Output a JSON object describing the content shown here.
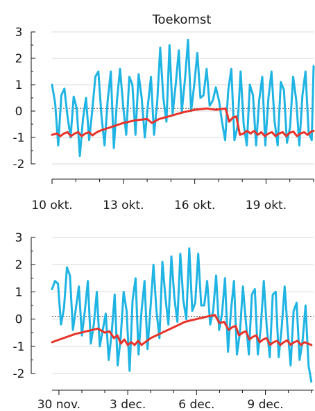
{
  "title": "Toekomst",
  "colors": {
    "blue": "#1fb4e3",
    "red": "#e8332a",
    "axis": "#222222",
    "grid": "#d9d9d9"
  },
  "chart_data": [
    {
      "type": "line",
      "title": "Toekomst",
      "xlabel": "",
      "ylabel": "",
      "xlim": [
        10.0,
        21.0
      ],
      "ylim": [
        -2,
        3
      ],
      "yticks": [
        -2,
        -1,
        0,
        1,
        2,
        3
      ],
      "grid": true,
      "x_ticks": [
        {
          "x": 10,
          "label": "10 okt."
        },
        {
          "x": 13,
          "label": "13 okt."
        },
        {
          "x": 16,
          "label": "16 okt."
        },
        {
          "x": 19,
          "label": "19 okt."
        }
      ],
      "zero_reference": 0.1,
      "series": [
        {
          "color": "blue",
          "x": [
            10.0,
            10.13,
            10.26,
            10.39,
            10.52,
            10.65,
            10.78,
            10.91,
            11.04,
            11.17,
            11.3,
            11.43,
            11.56,
            11.69,
            11.82,
            11.95,
            12.08,
            12.21,
            12.34,
            12.47,
            12.6,
            12.73,
            12.86,
            12.99,
            13.12,
            13.25,
            13.38,
            13.51,
            13.64,
            13.77,
            13.9,
            14.03,
            14.16,
            14.29,
            14.42,
            14.55,
            14.68,
            14.81,
            14.94,
            15.07,
            15.2,
            15.33,
            15.46,
            15.59,
            15.72,
            15.85,
            15.98,
            16.11,
            16.24,
            16.37,
            16.5,
            16.63,
            16.76,
            16.89,
            17.02,
            17.15,
            17.28,
            17.41,
            17.54,
            17.67,
            17.8,
            17.93,
            18.06,
            18.19,
            18.32,
            18.45,
            18.58,
            18.71,
            18.84,
            18.97,
            19.1,
            19.23,
            19.36,
            19.49,
            19.62,
            19.75,
            19.88,
            20.01,
            20.14,
            20.27,
            20.4,
            20.53,
            20.66,
            20.79,
            20.92,
            21.0
          ],
          "y": [
            1.0,
            0.3,
            -1.3,
            0.6,
            0.85,
            -0.2,
            -1.0,
            0.55,
            0.1,
            -1.7,
            -0.3,
            0.5,
            -1.1,
            0.0,
            1.3,
            1.5,
            -0.2,
            -1.3,
            0.4,
            1.5,
            -1.4,
            0.4,
            1.6,
            0.2,
            -0.9,
            1.3,
            1.0,
            -0.9,
            1.4,
            0.5,
            -1.0,
            0.2,
            1.3,
            -0.9,
            0.3,
            2.4,
            0.5,
            -0.4,
            2.5,
            -0.1,
            1.0,
            2.3,
            0.0,
            1.2,
            2.7,
            0.0,
            1.0,
            2.2,
            0.5,
            0.6,
            1.6,
            0.2,
            0.4,
            0.9,
            0.4,
            -0.4,
            -1.1,
            0.8,
            1.6,
            -1.1,
            -0.6,
            1.5,
            -0.5,
            -1.3,
            1.0,
            0.6,
            -1.3,
            0.4,
            1.3,
            -1.3,
            0.5,
            1.5,
            -0.4,
            -1.3,
            1.1,
            0.8,
            -1.2,
            -0.6,
            1.3,
            0.4,
            -1.3,
            0.6,
            1.5,
            -0.8,
            -1.1,
            1.7
          ]
        },
        {
          "color": "red",
          "x": [
            10.0,
            10.2,
            10.35,
            10.5,
            10.65,
            10.8,
            10.95,
            11.1,
            11.25,
            11.4,
            11.55,
            11.7,
            11.85,
            12.0,
            12.5,
            13.0,
            13.5,
            14.0,
            14.2,
            14.5,
            15.0,
            15.5,
            16.0,
            16.5,
            16.9,
            17.1,
            17.3,
            17.45,
            17.6,
            17.75,
            17.9,
            18.05,
            18.2,
            18.35,
            18.5,
            18.65,
            18.8,
            18.95,
            19.1,
            19.25,
            19.4,
            19.55,
            19.7,
            19.85,
            20.0,
            20.15,
            20.3,
            20.45,
            20.6,
            20.75,
            20.9,
            21.0
          ],
          "y": [
            -0.9,
            -0.85,
            -0.95,
            -0.85,
            -0.8,
            -0.95,
            -0.85,
            -0.8,
            -0.95,
            -0.85,
            -0.8,
            -0.92,
            -0.82,
            -0.75,
            -0.6,
            -0.45,
            -0.35,
            -0.3,
            -0.45,
            -0.3,
            -0.18,
            -0.05,
            0.05,
            0.1,
            0.05,
            0.08,
            0.1,
            -0.4,
            -0.25,
            -0.2,
            -0.9,
            -0.85,
            -0.75,
            -0.85,
            -0.75,
            -0.9,
            -0.8,
            -0.95,
            -0.85,
            -0.8,
            -0.95,
            -0.85,
            -0.8,
            -0.95,
            -0.82,
            -0.78,
            -0.95,
            -0.85,
            -0.8,
            -0.9,
            -0.78,
            -0.75
          ]
        }
      ]
    },
    {
      "type": "line",
      "xlabel": "",
      "ylabel": "",
      "xlim": [
        29.7,
        41.1
      ],
      "ylim": [
        -2,
        3
      ],
      "yticks": [
        -2,
        -1,
        0,
        1,
        2,
        3
      ],
      "grid": true,
      "x_ticks": [
        {
          "x": 30,
          "label": "30 nov."
        },
        {
          "x": 33,
          "label": "3 dec."
        },
        {
          "x": 36,
          "label": "6 dec."
        },
        {
          "x": 39,
          "label": "9 dec."
        }
      ],
      "zero_reference": 0.1,
      "series": [
        {
          "color": "blue",
          "x": [
            29.7,
            29.83,
            29.96,
            30.09,
            30.22,
            30.35,
            30.48,
            30.61,
            30.74,
            30.87,
            31.0,
            31.13,
            31.26,
            31.39,
            31.52,
            31.65,
            31.78,
            31.91,
            32.04,
            32.17,
            32.3,
            32.43,
            32.56,
            32.69,
            32.82,
            32.95,
            33.08,
            33.21,
            33.34,
            33.47,
            33.6,
            33.73,
            33.86,
            33.99,
            34.12,
            34.25,
            34.38,
            34.51,
            34.64,
            34.77,
            34.9,
            35.03,
            35.16,
            35.29,
            35.42,
            35.55,
            35.68,
            35.81,
            35.94,
            36.07,
            36.2,
            36.33,
            36.46,
            36.59,
            36.72,
            36.85,
            36.98,
            37.11,
            37.24,
            37.37,
            37.5,
            37.63,
            37.76,
            37.89,
            38.02,
            38.15,
            38.28,
            38.41,
            38.54,
            38.67,
            38.8,
            38.93,
            39.06,
            39.19,
            39.32,
            39.45,
            39.58,
            39.71,
            39.84,
            39.97,
            40.1,
            40.23,
            40.36,
            40.49,
            40.62,
            40.75,
            40.88,
            41.0
          ],
          "y": [
            1.1,
            1.4,
            1.3,
            -0.2,
            0.4,
            1.9,
            1.6,
            -0.4,
            0.4,
            1.2,
            -0.6,
            0.3,
            1.4,
            -0.9,
            -0.2,
            1.0,
            -1.0,
            -0.4,
            0.2,
            -1.5,
            -0.5,
            0.9,
            -1.7,
            -0.7,
            1.0,
            0.3,
            -1.9,
            0.7,
            1.5,
            -1.3,
            0.3,
            1.4,
            -1.1,
            0.4,
            2.0,
            0.3,
            -0.7,
            2.1,
            0.8,
            -0.2,
            2.3,
            0.8,
            -0.1,
            2.4,
            0.7,
            0.0,
            2.6,
            0.3,
            0.6,
            2.4,
            0.5,
            0.5,
            1.4,
            -0.2,
            0.3,
            1.6,
            -0.4,
            0.2,
            1.5,
            -1.2,
            0.3,
            1.4,
            -1.3,
            -0.5,
            1.2,
            -0.1,
            -1.3,
            0.9,
            1.1,
            -1.3,
            -0.3,
            1.4,
            -0.3,
            -1.4,
            0.9,
            1.0,
            -1.4,
            -0.3,
            1.2,
            -0.4,
            -1.7,
            0.3,
            0.6,
            -1.5,
            -0.8,
            0.5,
            -1.7,
            -2.3
          ]
        },
        {
          "color": "red",
          "x": [
            29.7,
            30.2,
            30.7,
            31.2,
            31.7,
            32.0,
            32.2,
            32.4,
            32.55,
            32.7,
            32.85,
            33.0,
            33.15,
            33.3,
            33.45,
            33.6,
            34.0,
            34.5,
            35.0,
            35.5,
            36.0,
            36.5,
            36.8,
            37.0,
            37.2,
            37.4,
            37.55,
            37.7,
            37.85,
            38.0,
            38.15,
            38.3,
            38.45,
            38.6,
            38.75,
            38.9,
            39.05,
            39.2,
            39.35,
            39.5,
            39.65,
            39.8,
            39.95,
            40.1,
            40.25,
            40.4,
            40.55,
            40.7,
            40.85,
            41.0
          ],
          "y": [
            -0.85,
            -0.7,
            -0.55,
            -0.45,
            -0.35,
            -0.5,
            -0.45,
            -0.7,
            -0.6,
            -0.9,
            -0.75,
            -0.95,
            -0.85,
            -0.95,
            -0.8,
            -0.95,
            -0.7,
            -0.5,
            -0.3,
            -0.1,
            0.0,
            0.1,
            0.15,
            -0.15,
            -0.1,
            -0.4,
            -0.3,
            -0.25,
            -0.6,
            -0.5,
            -0.45,
            -0.75,
            -0.65,
            -0.6,
            -0.85,
            -0.75,
            -0.7,
            -0.95,
            -0.85,
            -0.8,
            -0.95,
            -0.85,
            -0.78,
            -0.95,
            -0.85,
            -0.8,
            -0.95,
            -0.85,
            -0.9,
            -0.95
          ]
        }
      ]
    }
  ]
}
